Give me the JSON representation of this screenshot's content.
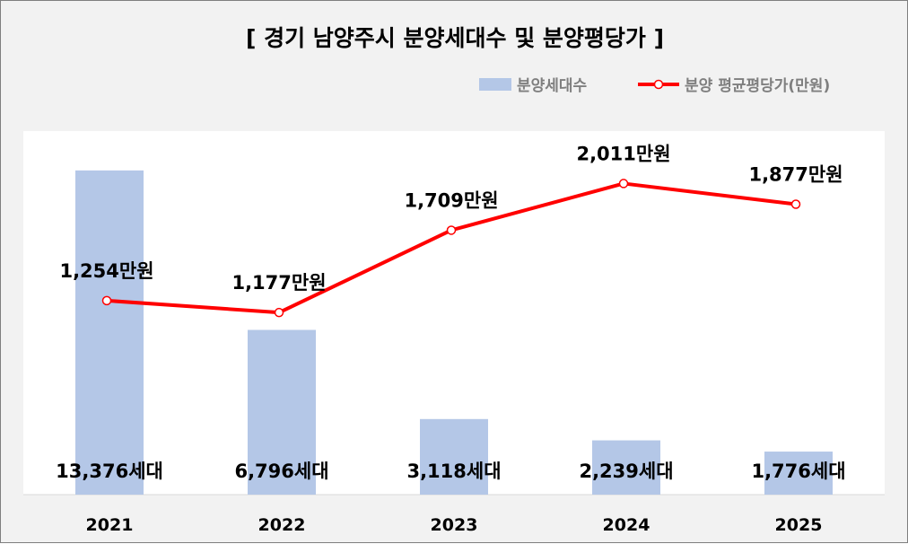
{
  "chart_data": {
    "type": "bar+line",
    "title": "[ 경기 남양주시 분양세대수 및 분양평당가 ]",
    "categories": [
      "2021",
      "2022",
      "2023",
      "2024",
      "2025"
    ],
    "series": [
      {
        "name": "분양세대수",
        "type": "bar",
        "values": [
          13376,
          6796,
          3118,
          2239,
          1776
        ],
        "labels": [
          "13,376세대",
          "6,796세대",
          "3,118세대",
          "2,239세대",
          "1,776세대"
        ],
        "color": "#b4c7e7"
      },
      {
        "name": "분양 평균평당가(만원)",
        "type": "line",
        "values": [
          1254,
          1177,
          1709,
          2011,
          1877
        ],
        "labels": [
          "1,254만원",
          "1,177만원",
          "1,709만원",
          "2,011만원",
          "1,877만원"
        ],
        "color": "#ff0000"
      }
    ],
    "bar_axis_range": [
      0,
      15000
    ],
    "line_axis_range": [
      0,
      2350
    ],
    "grid": false,
    "legend_position": "top-right"
  },
  "colors": {
    "background": "#f2f2f2",
    "plot_area": "#ffffff",
    "bar": "#b4c7e7",
    "line": "#ff0000",
    "marker_fill": "#ffffff",
    "axis": "#d9d9d9"
  }
}
